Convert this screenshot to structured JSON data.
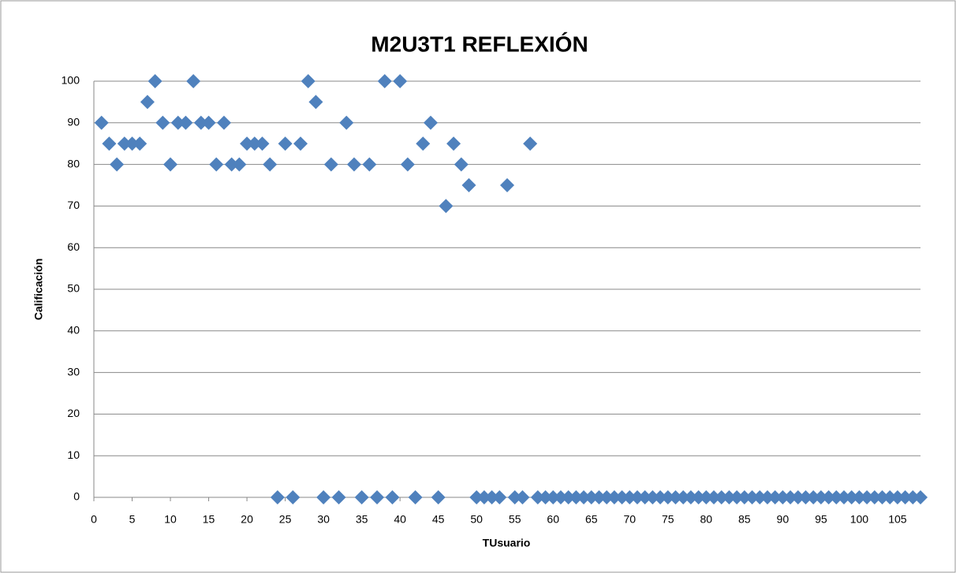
{
  "chart_data": {
    "type": "scatter",
    "title": "M2U3T1 REFLEXIÓN",
    "x_label": "TUsuario",
    "y_label": "Calificación",
    "series": [
      {
        "name": "Calificación",
        "color": "#4f81bd",
        "x": [
          1,
          2,
          3,
          4,
          5,
          6,
          7,
          8,
          9,
          10,
          11,
          12,
          13,
          14,
          15,
          16,
          17,
          18,
          19,
          20,
          21,
          22,
          23,
          24,
          25,
          26,
          27,
          28,
          29,
          30,
          31,
          32,
          33,
          34,
          35,
          36,
          37,
          38,
          39,
          40,
          41,
          42,
          43,
          44,
          45,
          46,
          47,
          48,
          49,
          50,
          51,
          52,
          53,
          54,
          55,
          56,
          57,
          58,
          59,
          60,
          61,
          62,
          63,
          64,
          65,
          66,
          67,
          68,
          69,
          70,
          71,
          72,
          73,
          74,
          75,
          76,
          77,
          78,
          79,
          80,
          81,
          82,
          83,
          84,
          85,
          86,
          87,
          88,
          89,
          90,
          91,
          92,
          93,
          94,
          95,
          96,
          97,
          98,
          99,
          100,
          101,
          102,
          103,
          104,
          105,
          106,
          107,
          108
        ],
        "values": [
          90,
          85,
          80,
          85,
          85,
          85,
          95,
          100,
          90,
          80,
          90,
          90,
          100,
          90,
          90,
          80,
          90,
          80,
          80,
          85,
          85,
          85,
          80,
          0,
          85,
          0,
          85,
          100,
          95,
          0,
          80,
          0,
          90,
          80,
          0,
          80,
          0,
          100,
          0,
          100,
          80,
          0,
          85,
          90,
          0,
          70,
          85,
          80,
          75,
          0,
          0,
          0,
          0,
          75,
          0,
          0,
          85,
          0,
          0,
          0,
          0,
          0,
          0,
          0,
          0,
          0,
          0,
          0,
          0,
          0,
          0,
          0,
          0,
          0,
          0,
          0,
          0,
          0,
          0,
          0,
          0,
          0,
          0,
          0,
          0,
          0,
          0,
          0,
          0,
          0,
          0,
          0,
          0,
          0,
          0,
          0,
          0,
          0,
          0,
          0,
          0,
          0,
          0,
          0,
          0,
          0,
          0,
          0
        ]
      }
    ],
    "xlim": [
      0,
      108
    ],
    "xticks": [
      0,
      5,
      10,
      15,
      20,
      25,
      30,
      35,
      40,
      45,
      50,
      55,
      60,
      65,
      70,
      75,
      80,
      85,
      90,
      95,
      100,
      105
    ],
    "ylim": [
      0,
      100
    ],
    "yticks": [
      0,
      10,
      20,
      30,
      40,
      50,
      60,
      70,
      80,
      90,
      100
    ],
    "grid": true
  }
}
